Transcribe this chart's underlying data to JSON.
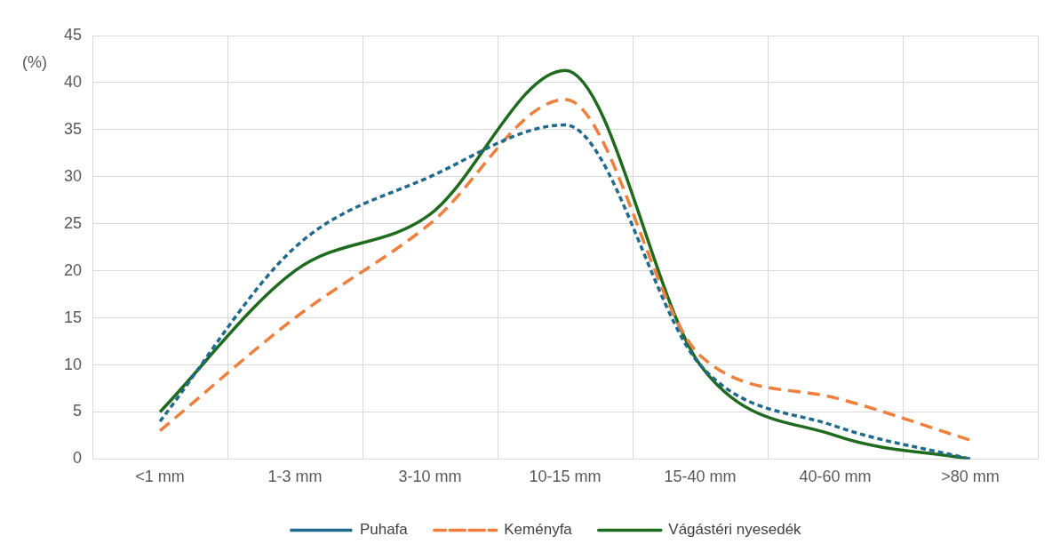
{
  "chart_data": {
    "type": "line",
    "ylabel": "(%)",
    "categories": [
      "<1 mm",
      "1-3 mm",
      "3-10 mm",
      "10-15 mm",
      "15-40 mm",
      "40-60 mm",
      ">80 mm"
    ],
    "series": [
      {
        "name": "Puhafa",
        "color": "#1f6a8e",
        "line_style": "dotted",
        "values": [
          4,
          22.5,
          30,
          35.5,
          10,
          3.5,
          0
        ]
      },
      {
        "name": "Keményfa",
        "color": "#f07f3c",
        "line_style": "dashed",
        "values": [
          3,
          15,
          25,
          38.2,
          11,
          6.5,
          2
        ]
      },
      {
        "name": "Vágástéri nyesedék",
        "color": "#1e6b1e",
        "line_style": "solid",
        "values": [
          5,
          20,
          26,
          41.3,
          10,
          2.5,
          0
        ]
      }
    ],
    "ylim": [
      0,
      45
    ],
    "yticks": [
      0,
      5,
      10,
      15,
      20,
      25,
      30,
      35,
      40,
      45
    ],
    "grid": true,
    "legend": "bottom",
    "marker": "none"
  }
}
